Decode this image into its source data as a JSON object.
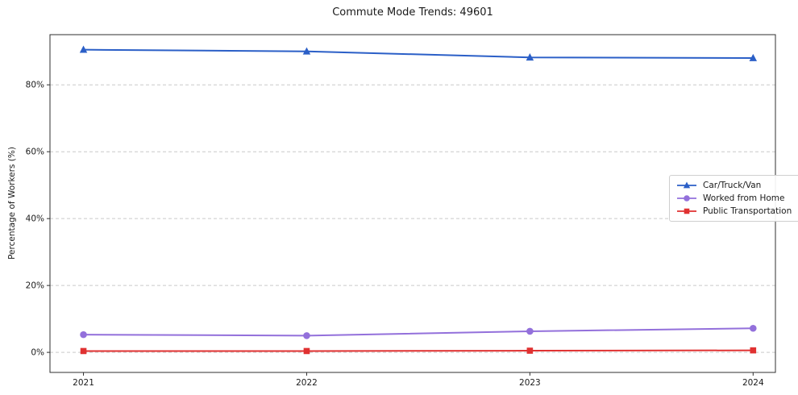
{
  "chart_data": {
    "type": "line",
    "title": "Commute Mode Trends: 49601",
    "xlabel": "",
    "ylabel": "Percentage of Workers (%)",
    "x": [
      2021,
      2022,
      2023,
      2024
    ],
    "x_tick_labels": [
      "2021",
      "2022",
      "2023",
      "2024"
    ],
    "yticks": [
      0,
      20,
      40,
      60,
      80
    ],
    "ytick_labels": [
      "0%",
      "20%",
      "40%",
      "60%",
      "80%"
    ],
    "xlim": [
      2020.85,
      2024.1
    ],
    "ylim": [
      -6,
      95
    ],
    "grid": "horizontal-dashed",
    "legend_position": "center-right",
    "series": [
      {
        "name": "Car/Truck/Van",
        "color": "#2b5fc7",
        "marker": "triangle",
        "values": [
          90.5,
          90.0,
          88.2,
          88.0
        ]
      },
      {
        "name": "Worked from Home",
        "color": "#9370db",
        "marker": "circle",
        "values": [
          5.3,
          5.0,
          6.3,
          7.2
        ]
      },
      {
        "name": "Public Transportation",
        "color": "#e03131",
        "marker": "square",
        "values": [
          0.4,
          0.4,
          0.5,
          0.6
        ]
      }
    ],
    "colors": {
      "grid": "#c9c9c9",
      "axis": "#2f2f2f",
      "background": "#ffffff",
      "text": "#1a1a1a"
    }
  }
}
